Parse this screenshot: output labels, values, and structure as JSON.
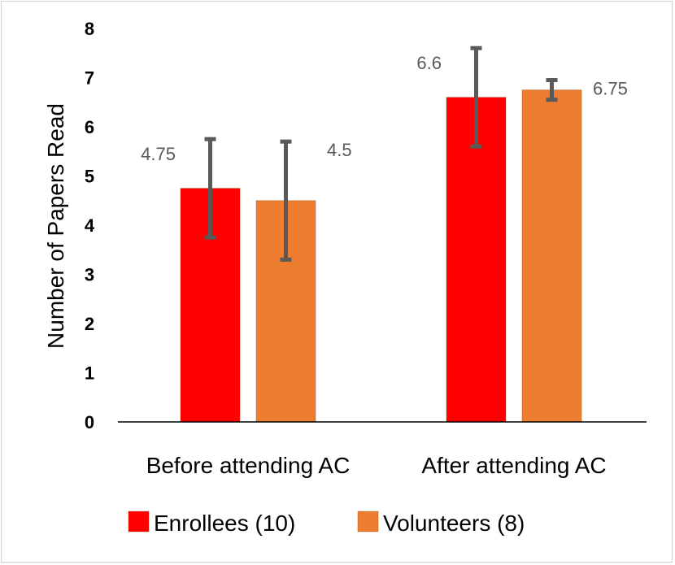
{
  "chart_data": {
    "type": "bar",
    "categories": [
      "Before attending AC",
      "After attending AC"
    ],
    "series": [
      {
        "name": "Enrollees (10)",
        "color": "#ff0000",
        "values": [
          4.75,
          6.6
        ],
        "error_low": [
          3.75,
          5.6
        ],
        "error_high": [
          5.75,
          7.6
        ],
        "value_labels": [
          "4.75",
          "6.6"
        ]
      },
      {
        "name": "Volunteers (8)",
        "color": "#ed7d31",
        "values": [
          4.5,
          6.75
        ],
        "error_low": [
          3.3,
          6.55
        ],
        "error_high": [
          5.7,
          6.95
        ],
        "value_labels": [
          "4.5",
          "6.75"
        ]
      }
    ],
    "title": "",
    "xlabel": "",
    "ylabel": "Number of Papers Read",
    "ylim": [
      0,
      8
    ],
    "yticks": [
      "0",
      "1",
      "2",
      "3",
      "4",
      "5",
      "6",
      "7",
      "8"
    ],
    "grid": false,
    "legend": "bottom",
    "error_bar_color": "#595959"
  }
}
